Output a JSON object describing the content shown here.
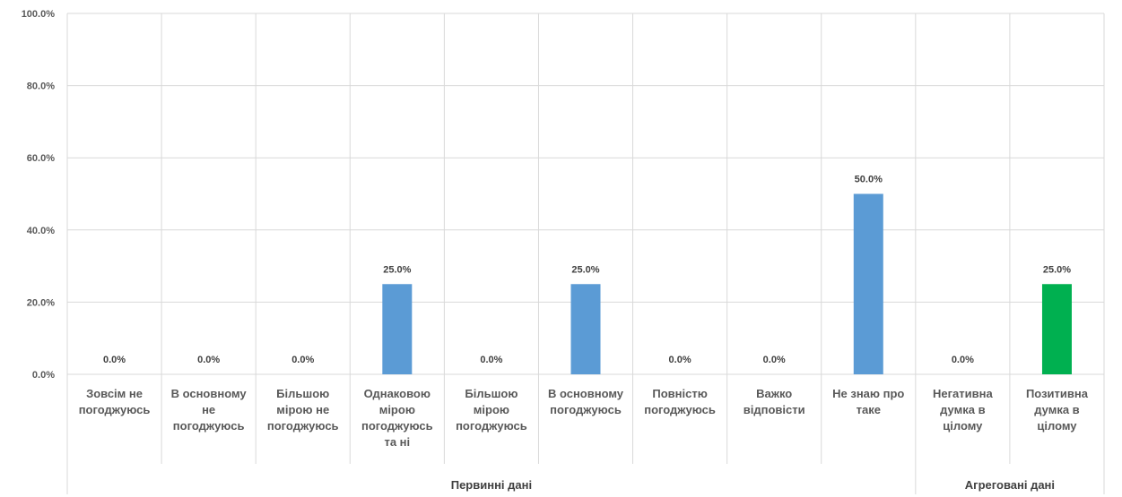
{
  "chart_data": {
    "type": "bar",
    "categories": [
      [
        "Зовсім не",
        "погоджуюсь"
      ],
      [
        "В основному",
        "не",
        "погоджуюсь"
      ],
      [
        "Більшою",
        "мірою не",
        "погоджуюсь"
      ],
      [
        "Однаковою",
        "мірою",
        "погоджуюсь",
        "та ні"
      ],
      [
        "Більшою",
        "мірою",
        "погоджуюсь"
      ],
      [
        "В основному",
        "погоджуюсь"
      ],
      [
        "Повністю",
        "погоджуюсь"
      ],
      [
        "Важко",
        "відповісти"
      ],
      [
        "Не знаю про",
        "таке"
      ],
      [
        "Негативна",
        "думка в",
        "цілому"
      ],
      [
        "Позитивна",
        "думка в",
        "цілому"
      ]
    ],
    "values": [
      0.0,
      0.0,
      0.0,
      25.0,
      0.0,
      25.0,
      0.0,
      0.0,
      50.0,
      0.0,
      25.0
    ],
    "data_labels": [
      "0.0%",
      "0.0%",
      "0.0%",
      "25.0%",
      "0.0%",
      "25.0%",
      "0.0%",
      "0.0%",
      "50.0%",
      "0.0%",
      "25.0%"
    ],
    "bar_colors": [
      "#5b9bd5",
      "#5b9bd5",
      "#5b9bd5",
      "#5b9bd5",
      "#5b9bd5",
      "#5b9bd5",
      "#5b9bd5",
      "#5b9bd5",
      "#5b9bd5",
      "#5b9bd5",
      "#00b050"
    ],
    "groups": [
      {
        "label": "Первинні дані",
        "count": 9
      },
      {
        "label": "Агреговані дані",
        "count": 2
      }
    ],
    "yticks": [
      "0.0%",
      "20.0%",
      "40.0%",
      "60.0%",
      "80.0%",
      "100.0%"
    ],
    "ylim": [
      0,
      100
    ],
    "grid": true,
    "colors": {
      "grid": "#d9d9d9",
      "text": "#595959"
    }
  }
}
